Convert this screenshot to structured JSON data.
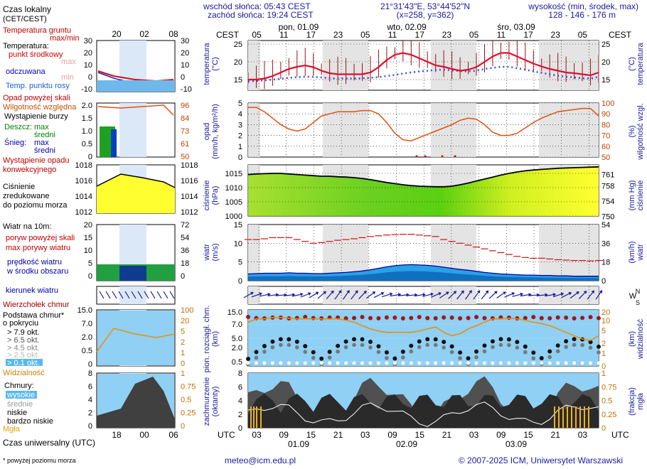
{
  "header": {
    "sunrise": "wschód słońca: 05:43 CEST",
    "sunset": "zachód słońca: 19:24 CEST",
    "coords": "21°31'43\"E, 53°44'52\"N",
    "grid": "(x=258, y=362)",
    "elev_title": "wysokość (min, środek, max)",
    "elev_values": "128 - 146 - 176 m",
    "cest": "CEST",
    "utc": "UTC"
  },
  "legend": {
    "local_time": "Czas lokalny",
    "local_time_sub": "(CET/CEST)",
    "ground_temp": "Temperatura gruntu",
    "ground_temp_sub": "max/min",
    "temp": "Temperatura:",
    "temp_mid": "punkt środkowy",
    "temp_max": "max",
    "temp_min": "min",
    "felt": "odczuwana",
    "dew": "Temp. punktu rosy",
    "precip_above": "Opad powyżej skali",
    "humidity": "Wilgotność względna",
    "storm": "Wystąpienie burzy",
    "rain": "Deszcz:",
    "rain_max": "max",
    "rain_mid": "średni",
    "snow": "Śnieg:",
    "snow_max": "max",
    "snow_mid": "średni",
    "conv": "Wystąpienie opadu",
    "conv2": "konwekcyjnego",
    "press1": "Ciśnienie",
    "press2": "zredukowane",
    "press3": "do poziomu morza",
    "wind10": "Wiatr na 10m:",
    "gust_above": "poryw powyżej skali",
    "gust_max": "max porywy wiatru",
    "wind_speed": "prędkość wiatru",
    "wind_area": "w środku obszaru",
    "wind_dir": "kierunek wiatru",
    "cloud_top": "Wierzchołek chmur",
    "cloud_base": "Podstawa chmur*",
    "cloud_cover": "o pokryciu",
    "okt79": "> 7.9 okt.",
    "okt65": "> 6.5 okt.",
    "okt45": "> 4.5 okt.",
    "okt25": "> 2.5 okt.",
    "okt01": "> 0.1 okt.",
    "visibility": "Widzialność",
    "clouds": "Chmury:",
    "high": "wysokie",
    "mid": "średnie",
    "low": "niskie",
    "vlow": "bardzo niskie",
    "fog": "Mgła",
    "utc_time": "Czas uniwersalny (UTC)",
    "footnote": "* powyżej poziomu morza"
  },
  "axes": {
    "temp": "temperatura",
    "temp_unit": "(°C)",
    "precip": "opad",
    "precip_unit": "(mm/h, kg/m²/h)",
    "hum": "wilgotność wzgl.",
    "hum_unit": "(%)",
    "press": "ciśnienie",
    "press_unit": "(hPa)",
    "press_unit2": "(mm Hg)",
    "wind": "wiatr",
    "wind_unit": "(m/s)",
    "wind_unit2": "(km/h)",
    "cloud": "pion. rozciągł. chm.",
    "cloud_unit": "(km)",
    "vis": "widzialność",
    "vis_unit": "(km)",
    "cov": "zachmurzenie",
    "cov_unit": "(oktanty)",
    "frac": "mgła",
    "frac_unit": "(frakcja)"
  },
  "footer": {
    "email": "meteo@icm.edu.pl",
    "copyright": "© 2007-2025 ICM, Uniwersytet Warszawski"
  },
  "chart_data": {
    "type": "line",
    "title": "Meteogram",
    "days": [
      {
        "label": "pon, 01.09"
      },
      {
        "label": "wto, 02.09"
      },
      {
        "label": "śro, 03.09"
      }
    ],
    "utc_days": [
      "01.09",
      "02.09",
      "03.09"
    ],
    "cest_ticks": [
      "05",
      "11",
      "17",
      "23",
      "05",
      "11",
      "17",
      "23",
      "05",
      "11",
      "17",
      "23",
      "05"
    ],
    "utc_ticks": [
      "03",
      "09",
      "15",
      "21",
      "03",
      "09",
      "15",
      "21",
      "03",
      "09",
      "15",
      "21",
      "03"
    ],
    "temperature": {
      "ylim": [
        12,
        26
      ],
      "yticks": [
        15,
        20,
        25
      ],
      "mid": [
        15,
        15,
        15.3,
        16,
        17,
        18,
        18.6,
        19,
        18.5,
        17.5,
        16.8,
        16.5,
        16.5,
        16.5,
        16.5,
        17,
        18.5,
        20.5,
        22,
        22.5,
        22,
        21,
        20,
        19,
        18.6,
        18,
        17.5,
        17.8,
        18.5,
        20,
        21.5,
        22.5,
        22.5,
        21.5,
        20.5,
        19.5,
        18.7,
        18,
        17.5,
        17,
        16.8,
        16.5,
        16.2,
        17
      ],
      "dew": [
        14.5,
        14.6,
        14.8,
        15,
        15.2,
        15.5,
        15.7,
        15.8,
        15.8,
        15.6,
        15.4,
        15.3,
        15.3,
        15.3,
        15.4,
        15.5,
        15.7,
        16,
        16.3,
        16.7,
        17,
        17.3,
        17.5,
        17.7,
        17.8,
        17.6,
        17.4,
        17.3,
        17.5,
        18,
        18.3,
        18.6,
        18.6,
        18.2,
        17.8,
        17.3,
        16.9,
        16.5,
        16.1,
        15.8,
        15.6,
        15.4,
        15.3,
        15.8
      ],
      "ground_x": [
        "20",
        "02",
        "08"
      ],
      "ground_y": [
        30,
        20,
        10,
        0,
        -10
      ]
    },
    "precipitation": {
      "ylim": [
        0,
        5
      ],
      "yticks": [
        0,
        1,
        2,
        3,
        4,
        5
      ],
      "humidity_ticks": [
        50,
        60,
        70,
        80,
        90,
        100
      ],
      "humidity": [
        96,
        96,
        92,
        86,
        80,
        76,
        74,
        76,
        82,
        88,
        90,
        92,
        92,
        92,
        93,
        93,
        90,
        82,
        72,
        66,
        65,
        68,
        71,
        74,
        77,
        80,
        84,
        86,
        85,
        80,
        73,
        70,
        70,
        72,
        77,
        82,
        86,
        89,
        92,
        93,
        94,
        95,
        95,
        88
      ]
    },
    "pressure": {
      "ylim": [
        1000,
        1018
      ],
      "yticks": [
        1000,
        1005,
        1010,
        1015
      ],
      "mmhg_ticks": [
        750,
        754,
        758,
        761
      ],
      "values": [
        1014.6,
        1014.8,
        1014.9,
        1015,
        1015,
        1014.8,
        1014.6,
        1014.4,
        1014.2,
        1014,
        1014,
        1013.8,
        1013.7,
        1013.5,
        1013.2,
        1012.8,
        1012.3,
        1011.8,
        1011.4,
        1011,
        1010.7,
        1010.5,
        1010.4,
        1010.3,
        1010.3,
        1010.5,
        1011,
        1011.6,
        1012.3,
        1013,
        1013.7,
        1014.4,
        1015,
        1015.5,
        1015.9,
        1016.2,
        1016.4,
        1016.6,
        1016.8,
        1016.9,
        1017,
        1017.1,
        1017.2,
        1017.3
      ]
    },
    "wind": {
      "ylim": [
        0,
        15
      ],
      "yticks": [
        0,
        5,
        10,
        15
      ],
      "kmh_ticks": [
        0,
        18,
        36,
        54
      ],
      "speed": [
        1.8,
        1.9,
        2,
        2,
        2,
        2.1,
        2,
        2,
        1.9,
        1.9,
        2,
        2.1,
        2.2,
        2.4,
        2.6,
        2.9,
        3.3,
        3.7,
        4,
        4.2,
        4.3,
        4.2,
        4.1,
        3.9,
        3.6,
        3.3,
        3,
        2.8,
        2.5,
        2.2,
        2,
        1.8,
        1.7,
        1.6,
        1.5,
        1.5,
        1.4,
        1.4,
        1.3,
        1.3,
        1.2,
        1.2,
        1.2,
        1.2
      ],
      "gust": [
        11,
        11,
        11.2,
        11.5,
        11.5,
        11.5,
        11,
        10.5,
        10,
        10.2,
        10.5,
        10.8,
        11,
        11.2,
        11.5,
        11.8,
        12,
        12.2,
        12.3,
        12.4,
        12.4,
        12.2,
        12,
        11.8,
        11,
        10.5,
        10,
        9.5,
        9,
        8.5,
        8,
        7.5,
        7,
        6.5,
        6.2,
        6,
        6,
        5.8,
        5.6,
        5.5,
        5.4,
        5.4,
        5.3,
        5.4
      ]
    },
    "clouds": {
      "ylim": [
        0,
        15
      ],
      "yticks": [
        0.5,
        2.0,
        5,
        7.0,
        15.0
      ],
      "vis_ticks": [
        0,
        1,
        2,
        5,
        10,
        20
      ],
      "visibility": [
        6.5,
        7,
        7,
        7.2,
        7.2,
        7.1,
        7,
        7,
        7,
        7,
        7,
        7,
        6.8,
        6.5,
        6,
        5.5,
        5.2,
        5,
        5,
        5,
        5,
        5.2,
        5.5,
        5.8,
        5,
        4.5,
        4.8,
        5.5,
        6,
        6.5,
        7,
        7,
        7.1,
        7,
        6.8,
        6.5,
        6.3,
        6,
        5.5,
        5,
        4.5,
        4,
        3.8,
        4.5
      ]
    },
    "coverage": {
      "ylim": [
        0,
        8
      ],
      "yticks": [
        0,
        2,
        4,
        6,
        8
      ],
      "frac_ticks": [
        0,
        0.25,
        0.5,
        0.75,
        1
      ]
    }
  }
}
